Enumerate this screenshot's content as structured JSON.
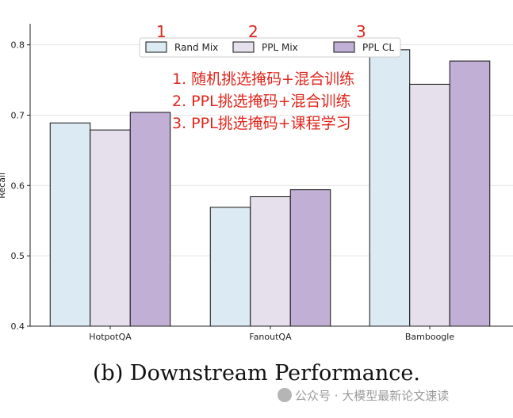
{
  "chart_data": {
    "type": "bar",
    "categories": [
      "HotpotQA",
      "FanoutQA",
      "Bamboogle"
    ],
    "series": [
      {
        "name": "Rand Mix",
        "values": [
          0.689,
          0.569,
          0.793
        ],
        "color": "#dceaf3"
      },
      {
        "name": "PPL Mix",
        "values": [
          0.679,
          0.584,
          0.744
        ],
        "color": "#e6dfec"
      },
      {
        "name": "PPL CL",
        "values": [
          0.704,
          0.594,
          0.777
        ],
        "color": "#c2afd6"
      }
    ],
    "ylabel": "Recall",
    "ylim": [
      0.4,
      0.83
    ],
    "yticks": [
      0.4,
      0.5,
      0.6,
      0.7,
      0.8
    ],
    "grid": "horizontal",
    "legend_placement": "top-center",
    "edge_color": "#111111"
  },
  "legend_numbers": [
    "1",
    "2",
    "3"
  ],
  "annotations": [
    "1. 随机挑选掩码+混合训练",
    "2. PPL挑选掩码+混合训练",
    "3. PPL挑选掩码+课程学习"
  ],
  "annotation_color": "#e0261d",
  "caption": "(b) Downstream Performance.",
  "watermark": "公众号 · 大模型最新论文速读"
}
